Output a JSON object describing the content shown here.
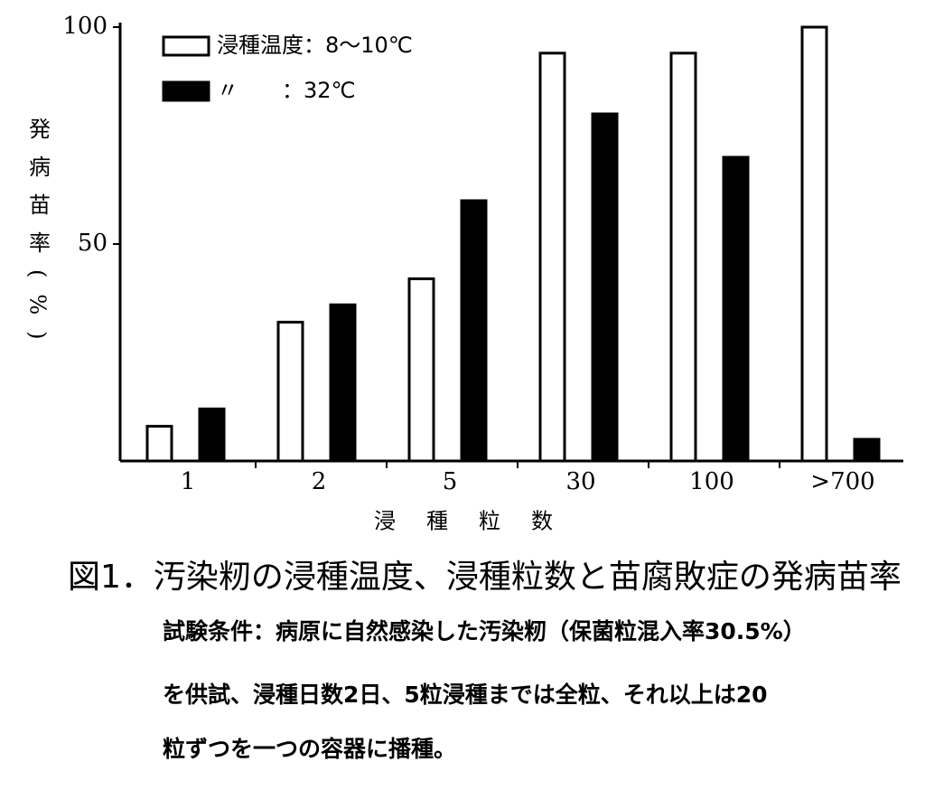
{
  "chart_data": {
    "type": "bar",
    "y_label": "発病苗率(%)",
    "x_label": "浸種粒数",
    "categories": [
      "1",
      "2",
      "5",
      "30",
      "100",
      ">700"
    ],
    "series": [
      {
        "name": "浸種温度：8～10℃",
        "color": "#ffffff",
        "values": [
          8,
          32,
          42,
          94,
          94,
          100
        ]
      },
      {
        "name": "〃　　：32℃",
        "color": "#000000",
        "values": [
          12,
          36,
          60,
          80,
          70,
          5
        ]
      }
    ],
    "ylim": [
      0,
      100
    ],
    "yticks": [
      50,
      100
    ],
    "legend": "upper left"
  },
  "caption": {
    "title": "図1．汚染籾の浸種温度、浸種粒数と苗腐敗症の発病苗率",
    "notes": [
      "試験条件：病原に自然感染した汚染籾（保菌粒混入率30.5%）",
      "を供試、浸種日数2日、5粒浸種までは全粒、それ以上は20",
      "粒ずつを一つの容器に播種。"
    ]
  }
}
